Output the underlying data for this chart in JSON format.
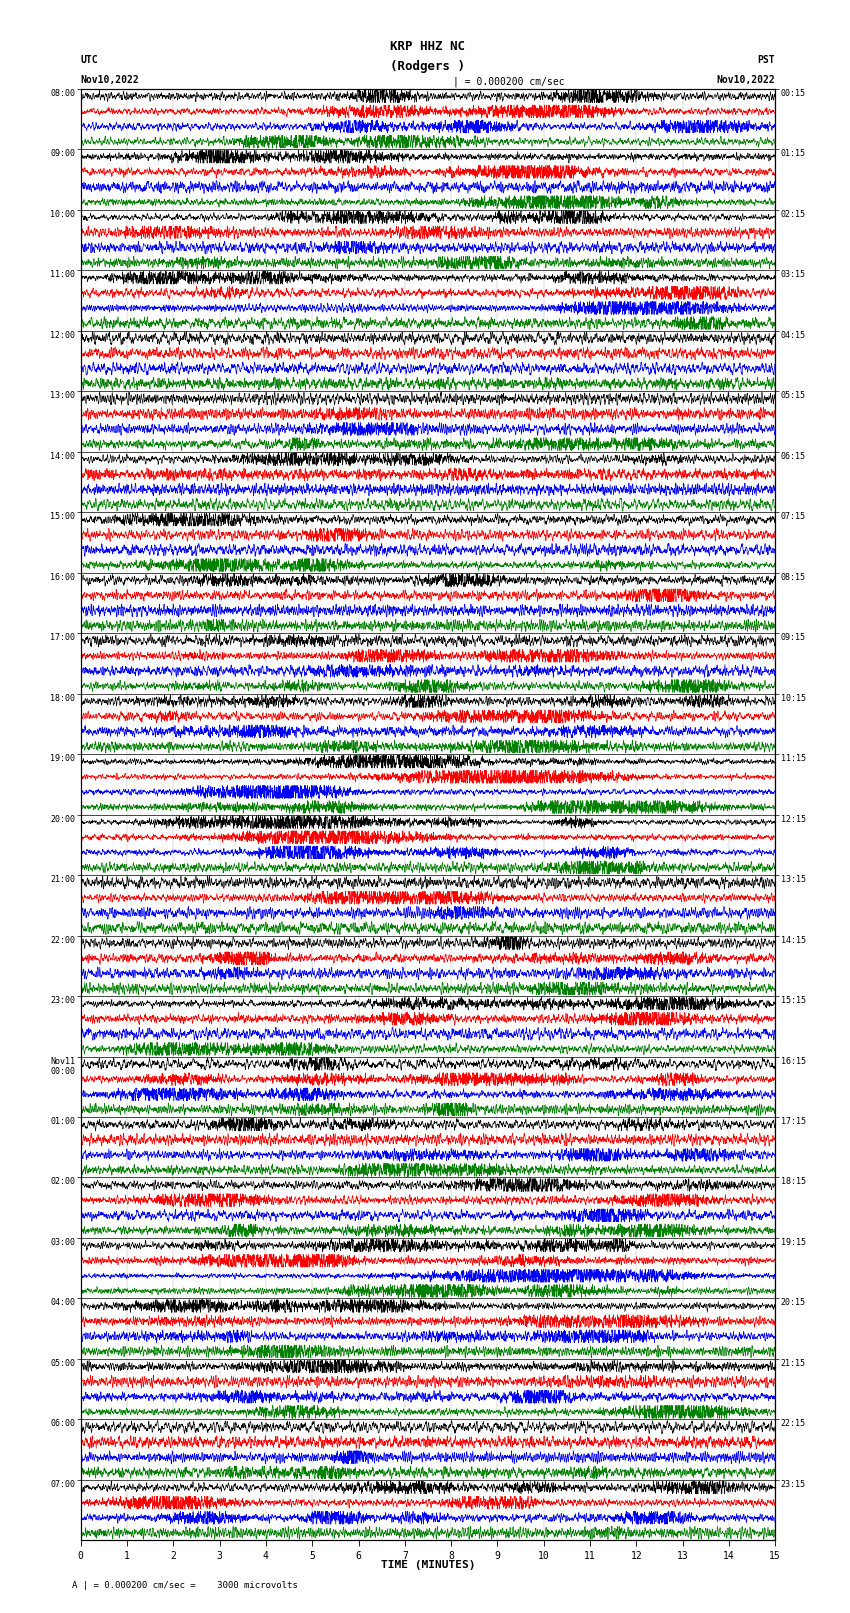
{
  "title_line1": "KRP HHZ NC",
  "title_line2": "(Rodgers )",
  "scale_label": "| = 0.000200 cm/sec",
  "bottom_label": "A | = 0.000200 cm/sec =    3000 microvolts",
  "xlabel": "TIME (MINUTES)",
  "left_header_line1": "UTC",
  "left_header_line2": "Nov10,2022",
  "right_header_line1": "PST",
  "right_header_line2": "Nov10,2022",
  "colors_cycle": [
    "black",
    "red",
    "blue",
    "green"
  ],
  "fig_width": 8.5,
  "fig_height": 16.13,
  "dpi": 100,
  "bg_color": "white",
  "n_points": 3000,
  "utc_labels": [
    "08:00",
    "09:00",
    "10:00",
    "11:00",
    "12:00",
    "13:00",
    "14:00",
    "15:00",
    "16:00",
    "17:00",
    "18:00",
    "19:00",
    "20:00",
    "21:00",
    "22:00",
    "23:00",
    "Nov11\n00:00",
    "01:00",
    "02:00",
    "03:00",
    "04:00",
    "05:00",
    "06:00",
    "07:00"
  ],
  "pst_labels": [
    "00:15",
    "01:15",
    "02:15",
    "03:15",
    "04:15",
    "05:15",
    "06:15",
    "07:15",
    "08:15",
    "09:15",
    "10:15",
    "11:15",
    "12:15",
    "13:15",
    "14:15",
    "15:15",
    "16:15",
    "17:15",
    "18:15",
    "19:15",
    "20:15",
    "21:15",
    "22:15",
    "23:15"
  ]
}
